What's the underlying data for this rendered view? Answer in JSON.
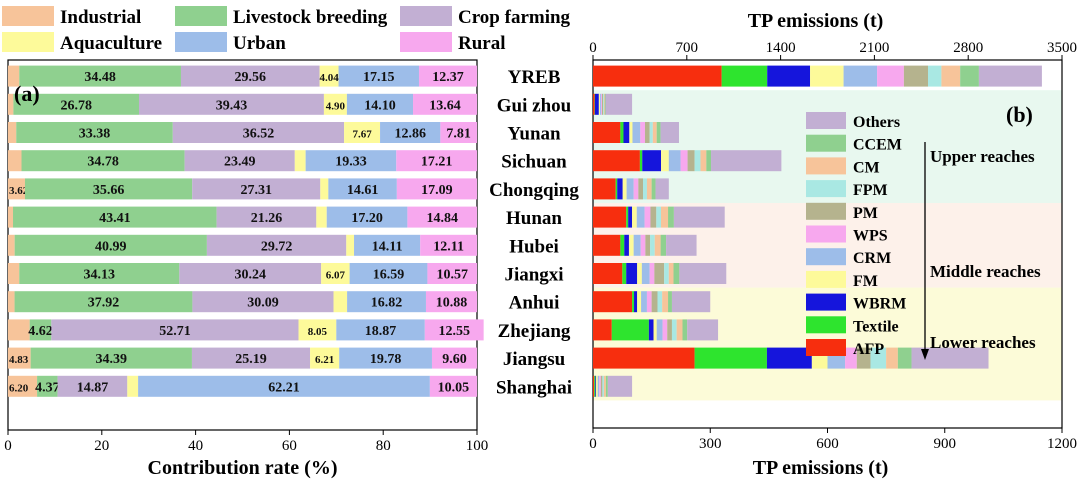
{
  "colors": {
    "Industrial": "#f7c49a",
    "Livestock breeding": "#8fd08f",
    "Crop farming": "#c2afd3",
    "Aquaculture": "#fdfa9a",
    "Urban": "#9dbde9",
    "Rural": "#f7a8ee",
    "Others": "#c2afd3",
    "CCEM": "#8fd08f",
    "CM": "#f7c49a",
    "FPM": "#a9e8e3",
    "PM": "#b5b38e",
    "WPS": "#f7a8ee",
    "CRM": "#9dbde9",
    "FM": "#fdfa9a",
    "WBRM": "#1515dc",
    "Textile": "#2ee42e",
    "AFP": "#f72e0e",
    "upper_bg": "#e8f8ef",
    "middle_bg": "#fdf1ea",
    "lower_bg": "#fcfbd8"
  },
  "chart_data": [
    {
      "type": "bar",
      "orientation": "horizontal",
      "stacked": true,
      "panel_label": "(a)",
      "xlabel": "Contribution rate (%)",
      "xlim": [
        0,
        100
      ],
      "xticks": [
        0,
        20,
        40,
        60,
        80,
        100
      ],
      "categories": [
        "YREB",
        "Gui zhou",
        "Yunan",
        "Sichuan",
        "Chongqing",
        "Hunan",
        "Hubei",
        "Jiangxi",
        "Anhui",
        "Zhejiang",
        "Jiangsu",
        "Shanghai"
      ],
      "legend": [
        "Industrial",
        "Livestock breeding",
        "Crop farming",
        "Aquaculture",
        "Urban",
        "Rural"
      ],
      "series": [
        {
          "name": "Industrial",
          "values": [
            2.4,
            1.15,
            1.76,
            2.88,
            3.62,
            1.07,
            1.42,
            2.4,
            1.4,
            4.62,
            4.83,
            6.2
          ]
        },
        {
          "name": "Livestock breeding",
          "values": [
            34.48,
            26.78,
            33.38,
            34.78,
            35.66,
            43.41,
            40.99,
            34.13,
            37.92,
            4.62,
            34.39,
            4.37
          ]
        },
        {
          "name": "Crop farming",
          "values": [
            29.56,
            39.43,
            36.52,
            23.49,
            27.31,
            21.26,
            29.72,
            30.24,
            30.09,
            52.71,
            25.19,
            14.87
          ]
        },
        {
          "name": "Aquaculture",
          "values": [
            4.04,
            4.9,
            7.67,
            2.31,
            1.71,
            2.22,
            1.65,
            6.07,
            2.89,
            8.05,
            6.21,
            2.3
          ]
        },
        {
          "name": "Urban",
          "values": [
            17.15,
            14.1,
            12.86,
            19.33,
            14.61,
            17.2,
            14.11,
            16.59,
            16.82,
            18.87,
            19.78,
            62.21
          ]
        },
        {
          "name": "Rural",
          "values": [
            12.37,
            13.64,
            7.81,
            17.21,
            17.09,
            14.84,
            12.11,
            10.57,
            10.88,
            12.55,
            9.6,
            10.05
          ]
        }
      ],
      "labels": [
        [
          "",
          "34.48",
          "29.56",
          "4.04",
          "17.15",
          "12.37"
        ],
        [
          "",
          "26.78",
          "39.43",
          "4.90",
          "14.10",
          "13.64"
        ],
        [
          "",
          "33.38",
          "36.52",
          "7.67",
          "12.86",
          "7.81"
        ],
        [
          "",
          "34.78",
          "23.49",
          "",
          "19.33",
          "17.21"
        ],
        [
          "3.62",
          "35.66",
          "27.31",
          "",
          "14.61",
          "17.09"
        ],
        [
          "",
          "43.41",
          "21.26",
          "",
          "17.20",
          "14.84"
        ],
        [
          "",
          "40.99",
          "29.72",
          "",
          "14.11",
          "12.11"
        ],
        [
          "",
          "34.13",
          "30.24",
          "6.07",
          "16.59",
          "10.57"
        ],
        [
          "",
          "37.92",
          "30.09",
          "",
          "16.82",
          "10.88"
        ],
        [
          "",
          "4.62",
          "52.71",
          "8.05",
          "18.87",
          "12.55"
        ],
        [
          "4.83",
          "34.39",
          "25.19",
          "6.21",
          "19.78",
          "9.60"
        ],
        [
          "6.20",
          "4.37",
          "14.87",
          "",
          "62.21",
          "10.05"
        ]
      ]
    },
    {
      "type": "bar",
      "orientation": "horizontal",
      "stacked": true,
      "panel_label": "(b)",
      "title": "TP emissions (t)",
      "xlabel": "TP emissions (t)",
      "top_axis": {
        "label": "TP emissions (t)",
        "xlim": [
          0,
          3500
        ],
        "xticks": [
          0,
          700,
          1400,
          2100,
          2800,
          3500
        ],
        "applies_to": "YREB"
      },
      "bottom_axis": {
        "label": "TP emissions (t)",
        "xlim": [
          0,
          1200
        ],
        "xticks": [
          0,
          300,
          600,
          900,
          1200
        ]
      },
      "categories": [
        "YREB",
        "Gui zhou",
        "Yunan",
        "Sichuan",
        "Chongqing",
        "Hunan",
        "Hubei",
        "Jiangxi",
        "Anhui",
        "Zhejiang",
        "Jiangsu",
        "Shanghai"
      ],
      "legend": [
        "Others",
        "CCEM",
        "CM",
        "FPM",
        "PM",
        "WPS",
        "CRM",
        "FM",
        "WBRM",
        "Textile",
        "AFP"
      ],
      "regions": [
        {
          "label": "Upper reaches",
          "rows": [
            "Gui zhou",
            "Yunan",
            "Sichuan",
            "Chongqing"
          ]
        },
        {
          "label": "Middle reaches",
          "rows": [
            "Hunan",
            "Hubei",
            "Jiangxi"
          ]
        },
        {
          "label": "Lower reaches",
          "rows": [
            "Anhui",
            "Zhejiang",
            "Jiangsu",
            "Shanghai"
          ]
        }
      ],
      "stack_order": [
        "AFP",
        "Textile",
        "WBRM",
        "FM",
        "CRM",
        "WPS",
        "PM",
        "FPM",
        "CM",
        "CCEM",
        "Others"
      ],
      "series": [
        {
          "name": "AFP",
          "values": [
            960,
            4,
            70,
            120,
            58,
            85,
            70,
            75,
            100,
            48,
            260,
            3
          ]
        },
        {
          "name": "Textile",
          "values": [
            340,
            1,
            8,
            6,
            4,
            5,
            10,
            10,
            5,
            95,
            185,
            3
          ]
        },
        {
          "name": "WBRM",
          "values": [
            320,
            10,
            15,
            48,
            14,
            10,
            12,
            28,
            8,
            12,
            115,
            2
          ]
        },
        {
          "name": "FM",
          "values": [
            250,
            3,
            8,
            20,
            10,
            12,
            12,
            12,
            10,
            8,
            40,
            4
          ]
        },
        {
          "name": "CRM",
          "values": [
            250,
            3,
            20,
            30,
            18,
            20,
            18,
            20,
            15,
            15,
            45,
            4
          ]
        },
        {
          "name": "WPS",
          "values": [
            200,
            2,
            12,
            18,
            12,
            15,
            12,
            12,
            12,
            12,
            30,
            4
          ]
        },
        {
          "name": "PM",
          "values": [
            180,
            3,
            12,
            18,
            12,
            15,
            12,
            25,
            15,
            12,
            35,
            4
          ]
        },
        {
          "name": "FPM",
          "values": [
            100,
            2,
            8,
            15,
            10,
            12,
            12,
            12,
            12,
            12,
            40,
            4
          ]
        },
        {
          "name": "CM",
          "values": [
            140,
            2,
            10,
            15,
            12,
            18,
            15,
            12,
            15,
            15,
            30,
            5
          ]
        },
        {
          "name": "CCEM",
          "values": [
            140,
            2,
            10,
            12,
            10,
            15,
            14,
            15,
            10,
            12,
            35,
            5
          ]
        },
        {
          "name": "Others",
          "values": [
            470,
            68,
            47,
            180,
            34,
            130,
            78,
            120,
            98,
            79,
            197,
            62
          ]
        }
      ]
    }
  ]
}
